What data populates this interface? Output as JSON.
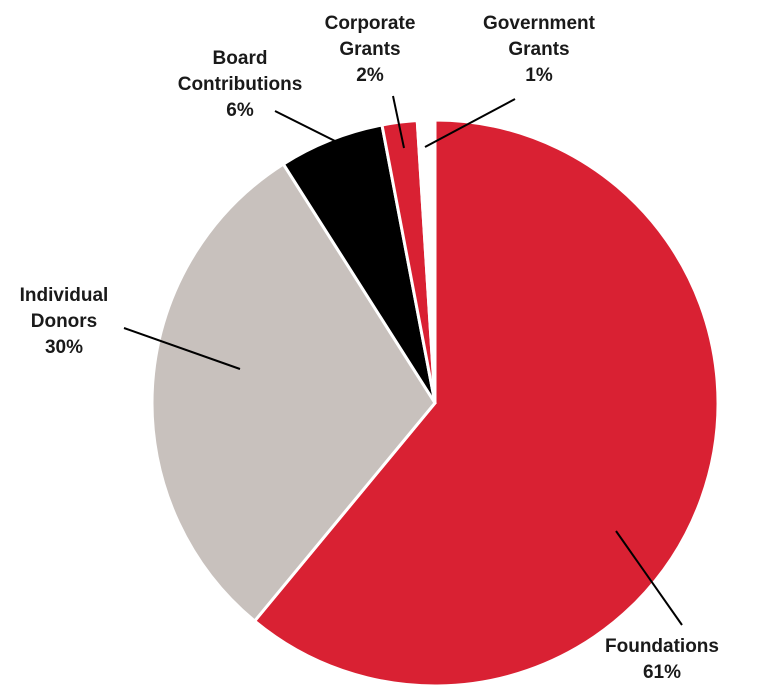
{
  "chart_data": {
    "type": "pie",
    "title": "",
    "start_angle_deg": 0,
    "direction": "clockwise",
    "slices": [
      {
        "name": "Foundations",
        "value": 61,
        "label": "61%",
        "color": "#d92133"
      },
      {
        "name": "Individual Donors",
        "value": 30,
        "label": "30%",
        "color": "#c8c1bd"
      },
      {
        "name": "Board Contributions",
        "value": 6,
        "label": "6%",
        "color": "#000000"
      },
      {
        "name": "Corporate Grants",
        "value": 2,
        "label": "2%",
        "color": "#d92133"
      },
      {
        "name": "Government Grants",
        "value": 1,
        "label": "1%",
        "color": "#ffffff"
      }
    ],
    "label_lines": [
      [
        "Foundations",
        "61%"
      ],
      [
        "Individual",
        "Donors",
        "30%"
      ],
      [
        "Board",
        "Contributions",
        "6%"
      ],
      [
        "Corporate",
        "Grants",
        "2%"
      ],
      [
        "Government",
        "Grants",
        "1%"
      ]
    ]
  }
}
